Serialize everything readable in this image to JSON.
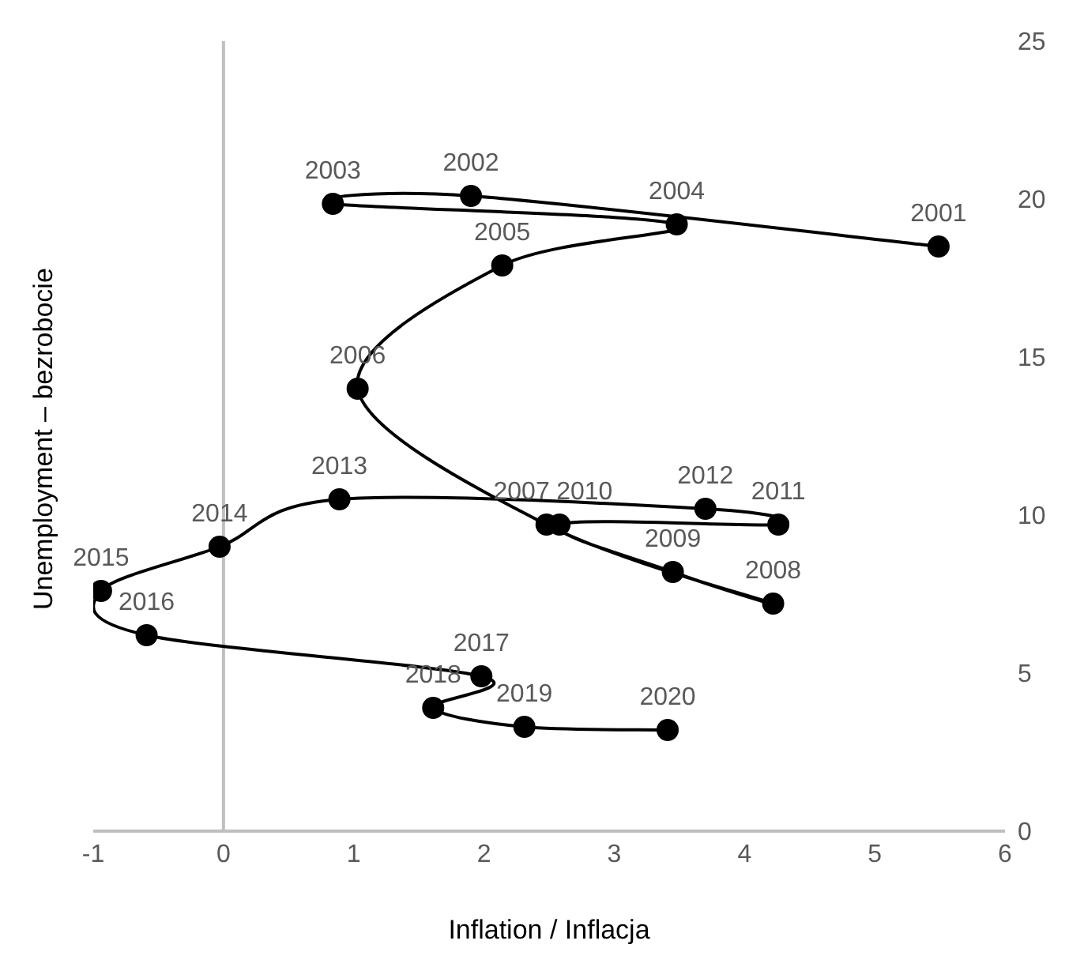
{
  "chart_data": {
    "type": "line",
    "xlabel": "Inflation / Inflacja",
    "ylabel": "Unemployment – bezrobocie",
    "x": [
      5.49,
      1.9,
      0.84,
      3.48,
      2.14,
      1.03,
      2.48,
      4.22,
      3.45,
      2.58,
      4.26,
      3.7,
      0.89,
      -0.03,
      -0.94,
      -0.59,
      1.98,
      1.61,
      2.31,
      3.41
    ],
    "series": [
      {
        "color": "#000000",
        "values": [
          18.5,
          20.1,
          19.85,
          19.2,
          17.9,
          14.0,
          9.7,
          7.2,
          8.2,
          9.7,
          9.7,
          10.2,
          10.5,
          9.0,
          7.6,
          6.2,
          4.9,
          3.9,
          3.3,
          3.2
        ]
      }
    ],
    "annotations": [
      {
        "text": "2001",
        "x": 5.49,
        "y": 18.5
      },
      {
        "text": "2002",
        "x": 1.9,
        "y": 20.1
      },
      {
        "text": "2003",
        "x": 0.84,
        "y": 19.85
      },
      {
        "text": "2004",
        "x": 3.48,
        "y": 19.2
      },
      {
        "text": "2005",
        "x": 2.14,
        "y": 17.9
      },
      {
        "text": "2006",
        "x": 1.03,
        "y": 14.0
      },
      {
        "text": "2007",
        "x": 2.48,
        "y": 9.7
      },
      {
        "text": "2008",
        "x": 4.22,
        "y": 7.2
      },
      {
        "text": "2009",
        "x": 3.45,
        "y": 8.2
      },
      {
        "text": "2010",
        "x": 2.58,
        "y": 9.7
      },
      {
        "text": "2011",
        "x": 4.26,
        "y": 9.7
      },
      {
        "text": "2012",
        "x": 3.7,
        "y": 10.2
      },
      {
        "text": "2013",
        "x": 0.89,
        "y": 10.5
      },
      {
        "text": "2014",
        "x": -0.03,
        "y": 9.0
      },
      {
        "text": "2015",
        "x": -0.94,
        "y": 7.6
      },
      {
        "text": "2016",
        "x": -0.59,
        "y": 6.2
      },
      {
        "text": "2017",
        "x": 1.98,
        "y": 4.9
      },
      {
        "text": "2018",
        "x": 1.61,
        "y": 3.9
      },
      {
        "text": "2019",
        "x": 2.31,
        "y": 3.3
      },
      {
        "text": "2020",
        "x": 3.41,
        "y": 3.2
      }
    ],
    "xlim": [
      -1,
      6
    ],
    "xticks": [
      -1,
      0,
      1,
      2,
      3,
      4,
      5,
      6
    ],
    "ylim": [
      0,
      25
    ],
    "yticks": [
      0,
      5,
      10,
      15,
      20,
      25
    ],
    "ref_lines": [
      {
        "axis": "x",
        "value": 0,
        "color": "#bfbfbf"
      }
    ],
    "marker": "circle",
    "line_style": "solid"
  }
}
